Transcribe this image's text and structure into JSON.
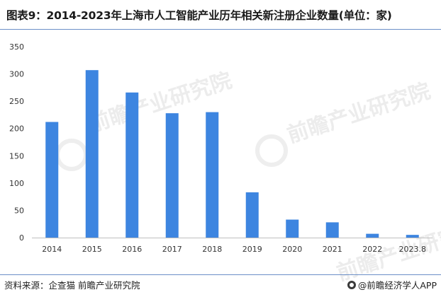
{
  "header": {
    "title": "图表9：2014-2023年上海市人工智能产业历年相关新注册企业数量(单位：家)"
  },
  "footer": {
    "source": "资料来源：企查猫 前瞻产业研究院",
    "brand": "@前瞻经济学人APP"
  },
  "watermark": {
    "text": "前瞻产业研究院"
  },
  "colors": {
    "bar": "#3d85e0",
    "axis": "#bfbfbf",
    "title_rule": "#6b8fc7"
  },
  "chart_data": {
    "type": "bar",
    "title": "",
    "xlabel": "",
    "ylabel": "",
    "categories": [
      "2014",
      "2015",
      "2016",
      "2017",
      "2018",
      "2019",
      "2020",
      "2021",
      "2022",
      "2023.8"
    ],
    "values": [
      212,
      307,
      266,
      228,
      230,
      83,
      33,
      28,
      7,
      5
    ],
    "ylim": [
      0,
      350
    ],
    "yticks": [
      0,
      50,
      100,
      150,
      200,
      250,
      300,
      350
    ],
    "grid": false,
    "legend": "none"
  }
}
